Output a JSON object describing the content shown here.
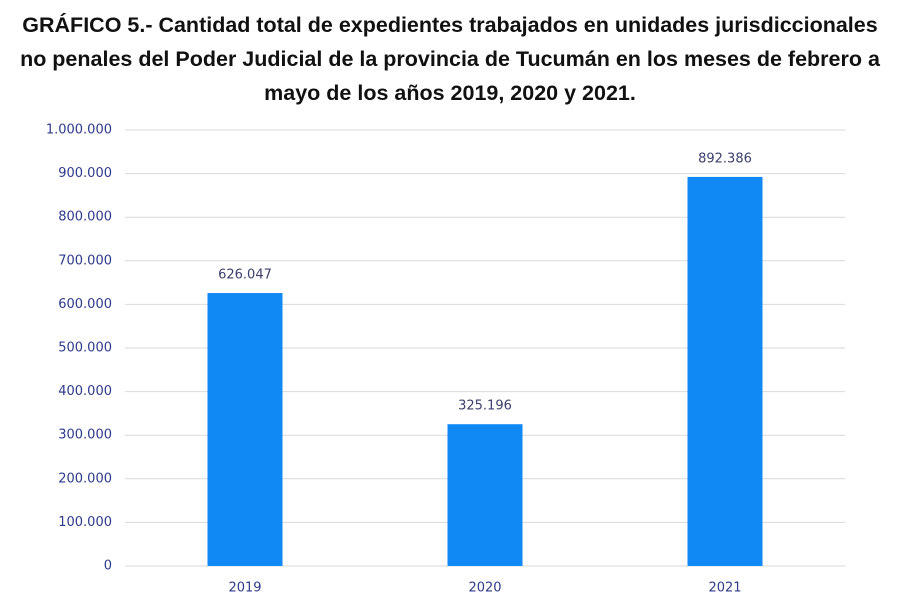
{
  "chart_data": {
    "type": "bar",
    "title": "GRÁFICO 5.- Cantidad total de expedientes trabajados en unidades jurisdiccionales no penales del Poder Judicial de la provincia de Tucumán en los meses de febrero a mayo de los años 2019, 2020 y 2021.",
    "categories": [
      "2019",
      "2020",
      "2021"
    ],
    "values": [
      626047,
      325196,
      892386
    ],
    "value_labels": [
      "626.047",
      "325.196",
      "892.386"
    ],
    "color": "#1089f5",
    "ylim": [
      0,
      1000000
    ],
    "yticks": [
      0,
      {
        "value": 100000,
        "label": "100.000"
      },
      {
        "value": 200000,
        "label": "200.000"
      },
      {
        "value": 300000,
        "label": "300.000"
      },
      {
        "value": 400000,
        "label": "400.000"
      },
      {
        "value": 500000,
        "label": "500.000"
      },
      {
        "value": 600000,
        "label": "600.000"
      },
      {
        "value": 700000,
        "label": "700.000"
      },
      {
        "value": 800000,
        "label": "800.000"
      },
      {
        "value": 900000,
        "label": "900.000"
      },
      {
        "value": 1000000,
        "label": "1.000.000"
      }
    ],
    "grid": true
  }
}
